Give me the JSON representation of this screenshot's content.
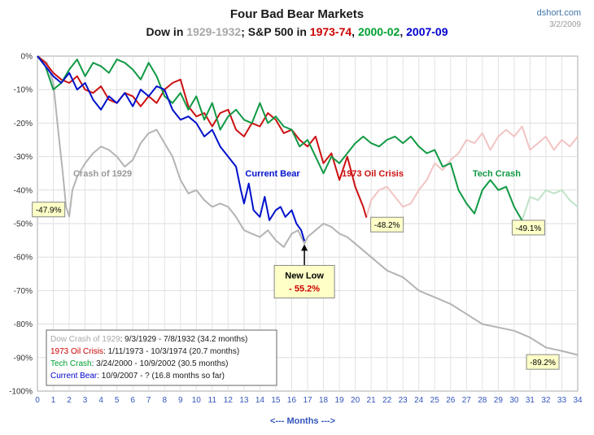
{
  "header": {
    "title": "Four Bad Bear Markets",
    "subtitle_parts": [
      {
        "text": "Dow in ",
        "color": "#1a1a1a"
      },
      {
        "text": "1929-1932",
        "color": "#a8a8a8"
      },
      {
        "text": "; S&P 500 in ",
        "color": "#1a1a1a"
      },
      {
        "text": "1973-74",
        "color": "#cc0000"
      },
      {
        "text": ", ",
        "color": "#1a1a1a"
      },
      {
        "text": "2000-02",
        "color": "#00a030"
      },
      {
        "text": ", ",
        "color": "#1a1a1a"
      },
      {
        "text": "2007-09",
        "color": "#0000cc"
      }
    ],
    "source": "dshort.com",
    "date": "3/2/2009"
  },
  "chart_data": {
    "type": "line",
    "xlabel": "<--- Months --->",
    "ylabel": "",
    "xlim": [
      0,
      34
    ],
    "ylim": [
      -100,
      0
    ],
    "x_ticks": [
      "0",
      "1",
      "2",
      "3",
      "4",
      "5",
      "6",
      "7",
      "8",
      "9",
      "10",
      "11",
      "12",
      "13",
      "14",
      "15",
      "16",
      "17",
      "18",
      "19",
      "20",
      "21",
      "22",
      "23",
      "24",
      "25",
      "26",
      "27",
      "28",
      "29",
      "30",
      "31",
      "32",
      "33",
      "34"
    ],
    "y_ticks": [
      "0%",
      "-10%",
      "-20%",
      "-30%",
      "-40%",
      "-50%",
      "-60%",
      "-70%",
      "-80%",
      "-90%",
      "-100%"
    ],
    "grid": true,
    "series": [
      {
        "name": "Crash of 1929",
        "color": "#b4b4b4",
        "x": [
          0,
          0.6,
          1.0,
          1.3,
          1.6,
          1.8,
          2.0,
          2.2,
          2.5,
          3.0,
          3.5,
          4.0,
          4.5,
          5.0,
          5.5,
          6.0,
          6.5,
          7.0,
          7.5,
          8.0,
          8.5,
          9.0,
          9.5,
          10.0,
          10.5,
          11.0,
          11.5,
          12.0,
          12.5,
          13.0,
          13.5,
          14.0,
          14.5,
          15.0,
          15.5,
          16.0,
          16.4,
          16.8,
          17.0,
          17.5,
          18.0,
          18.5,
          19.0,
          19.5,
          20.0,
          21.0,
          22.0,
          23.0,
          24.0,
          25.0,
          26.0,
          27.0,
          28.0,
          29.0,
          30.0,
          31.0,
          32.0,
          33.0,
          34.0
        ],
        "y": [
          0,
          -2,
          -8,
          -22,
          -35,
          -45,
          -47.9,
          -40,
          -36,
          -32,
          -29,
          -27,
          -28,
          -30,
          -33,
          -31,
          -26,
          -23,
          -22,
          -26,
          -30,
          -37,
          -41,
          -40,
          -43,
          -45,
          -44,
          -45,
          -48,
          -52,
          -53,
          -54,
          -52,
          -55,
          -57,
          -53,
          -52,
          -56,
          -54,
          -52,
          -50,
          -51,
          -53,
          -54,
          -56,
          -60,
          -64,
          -66,
          -70,
          -72,
          -74,
          -77,
          -80,
          -81,
          -82,
          -84,
          -87,
          -88,
          -89.2
        ]
      },
      {
        "name": "1973 Oil Crisis",
        "color": "#cc1111",
        "x": [
          0,
          0.5,
          1.0,
          1.5,
          2.0,
          2.5,
          3.0,
          3.5,
          4.0,
          4.5,
          5.0,
          5.5,
          6.0,
          6.5,
          7.0,
          7.5,
          8.0,
          8.5,
          9.0,
          9.5,
          10.0,
          10.5,
          11.0,
          11.5,
          12.0,
          12.5,
          13.0,
          13.5,
          14.0,
          14.5,
          15.0,
          15.5,
          16.0,
          16.5,
          17.0,
          17.5,
          18.0,
          18.5,
          19.0,
          19.5,
          20.0,
          20.5,
          20.7
        ],
        "y": [
          0,
          -2,
          -5,
          -7,
          -8,
          -6,
          -10,
          -11,
          -9,
          -13,
          -14,
          -11,
          -12,
          -15,
          -12,
          -14,
          -10,
          -8,
          -7,
          -15,
          -18,
          -17,
          -21,
          -17,
          -16,
          -22,
          -24,
          -20,
          -21,
          -17,
          -19,
          -23,
          -22,
          -25,
          -27,
          -24,
          -32,
          -29,
          -37,
          -30,
          -39,
          -45,
          -48.2
        ]
      },
      {
        "name": "1973 Oil Crisis (after low)",
        "color": "#f2c4c4",
        "x": [
          20.7,
          21.0,
          21.5,
          22.0,
          22.5,
          23.0,
          23.5,
          24.0,
          24.5,
          25.0,
          25.5,
          26.0,
          26.5,
          27.0,
          27.5,
          28.0,
          28.5,
          29.0,
          29.5,
          30.0,
          30.5,
          31.0,
          31.5,
          32.0,
          32.5,
          33.0,
          33.5,
          34.0
        ],
        "y": [
          -48.2,
          -43,
          -40,
          -39,
          -42,
          -45,
          -44,
          -40,
          -37,
          -32,
          -34,
          -31,
          -29,
          -25,
          -26,
          -23,
          -28,
          -24,
          -22,
          -24,
          -21,
          -28,
          -26,
          -24,
          -28,
          -25,
          -27,
          -24
        ]
      },
      {
        "name": "Tech Crash",
        "color": "#119944",
        "x": [
          0,
          0.5,
          1.0,
          1.5,
          2.0,
          2.5,
          3.0,
          3.5,
          4.0,
          4.5,
          5.0,
          5.5,
          6.0,
          6.5,
          7.0,
          7.5,
          8.0,
          8.5,
          9.0,
          9.5,
          10.0,
          10.5,
          11.0,
          11.5,
          12.0,
          12.5,
          13.0,
          13.5,
          14.0,
          14.5,
          15.0,
          15.5,
          16.0,
          16.5,
          17.0,
          17.5,
          18.0,
          18.5,
          19.0,
          19.5,
          20.0,
          20.5,
          21.0,
          21.5,
          22.0,
          22.5,
          23.0,
          23.5,
          24.0,
          24.5,
          25.0,
          25.5,
          26.0,
          26.5,
          27.0,
          27.5,
          28.0,
          28.5,
          29.0,
          29.5,
          30.0,
          30.5
        ],
        "y": [
          0,
          -3,
          -10,
          -8,
          -4,
          -1,
          -6,
          -2,
          -3,
          -5,
          -1,
          -2,
          -4,
          -7,
          -2,
          -6,
          -12,
          -14,
          -11,
          -16,
          -12,
          -19,
          -14,
          -22,
          -18,
          -16,
          -19,
          -20,
          -14,
          -20,
          -18,
          -21,
          -22,
          -27,
          -25,
          -30,
          -35,
          -30,
          -32,
          -29,
          -26,
          -24,
          -26,
          -27,
          -25,
          -24,
          -26,
          -24,
          -27,
          -29,
          -28,
          -33,
          -32,
          -40,
          -44,
          -47,
          -40,
          -37,
          -40,
          -39,
          -45,
          -49.1
        ]
      },
      {
        "name": "Tech Crash (after low)",
        "color": "#bfe3c8",
        "x": [
          30.5,
          31.0,
          31.5,
          32.0,
          32.5,
          33.0,
          33.5,
          34.0
        ],
        "y": [
          -49.1,
          -42,
          -43,
          -40,
          -41,
          -40,
          -43,
          -45
        ]
      },
      {
        "name": "Current Bear",
        "color": "#0011cc",
        "x": [
          0,
          0.5,
          1.0,
          1.5,
          2.0,
          2.5,
          3.0,
          3.5,
          4.0,
          4.5,
          5.0,
          5.5,
          6.0,
          6.5,
          7.0,
          7.5,
          8.0,
          8.5,
          9.0,
          9.5,
          10.0,
          10.5,
          11.0,
          11.5,
          12.0,
          12.5,
          12.8,
          13.0,
          13.3,
          13.6,
          14.0,
          14.3,
          14.6,
          15.0,
          15.3,
          15.6,
          16.0,
          16.3,
          16.6,
          16.8
        ],
        "y": [
          0,
          -3,
          -6,
          -8,
          -5,
          -10,
          -8,
          -13,
          -16,
          -12,
          -14,
          -11,
          -15,
          -10,
          -12,
          -9,
          -10,
          -16,
          -19,
          -18,
          -20,
          -24,
          -22,
          -27,
          -30,
          -33,
          -40,
          -44,
          -38,
          -46,
          -48,
          -42,
          -49,
          -46,
          -45,
          -48,
          -46,
          -50,
          -52,
          -55.2
        ]
      }
    ],
    "series_labels": [
      {
        "text": "Crash of 1929",
        "x": 4.1,
        "y": -35,
        "color": "#999999"
      },
      {
        "text": "Current Bear",
        "x": 14.8,
        "y": -35,
        "color": "#0011cc"
      },
      {
        "text": "1973 Oil Crisis",
        "x": 21.1,
        "y": -35,
        "color": "#cc1111"
      },
      {
        "text": "Tech Crash",
        "x": 28.9,
        "y": -35,
        "color": "#119944"
      }
    ],
    "callouts": [
      {
        "text": "-47.9%",
        "x": 0.7,
        "y": -45.8,
        "color": "#000000"
      },
      {
        "text": "-48.2%",
        "x": 22.0,
        "y": -50.3,
        "color": "#000000"
      },
      {
        "text": "-49.1%",
        "x": 30.9,
        "y": -51.2,
        "color": "#000000"
      },
      {
        "text": "-89.2%",
        "x": 31.8,
        "y": -91.3,
        "color": "#000000"
      }
    ],
    "new_low": {
      "line1": "New Low",
      "line2": "- 55.2%",
      "x": 16.8,
      "y": -55.2
    },
    "legend": {
      "placement": "bottom-left",
      "rows": [
        {
          "label": "Dow Crash of 1929",
          "rest": ": 9/3/1929 - 7/8/1932 (34.2 months)",
          "color": "#a8a8a8"
        },
        {
          "label": "1973 Oil Crisis",
          "rest": ": 1/11/1973 - 10/3/1974 (20.7 months)",
          "color": "#cc0000"
        },
        {
          "label": "Tech Crash",
          "rest": ": 3/24/2000 - 10/9/2002 (30.5 months)",
          "color": "#00a030"
        },
        {
          "label": "Current Bear",
          "rest": ": 10/9/2007 - ?  (16.8 months so far)",
          "color": "#0000cc"
        }
      ]
    }
  }
}
